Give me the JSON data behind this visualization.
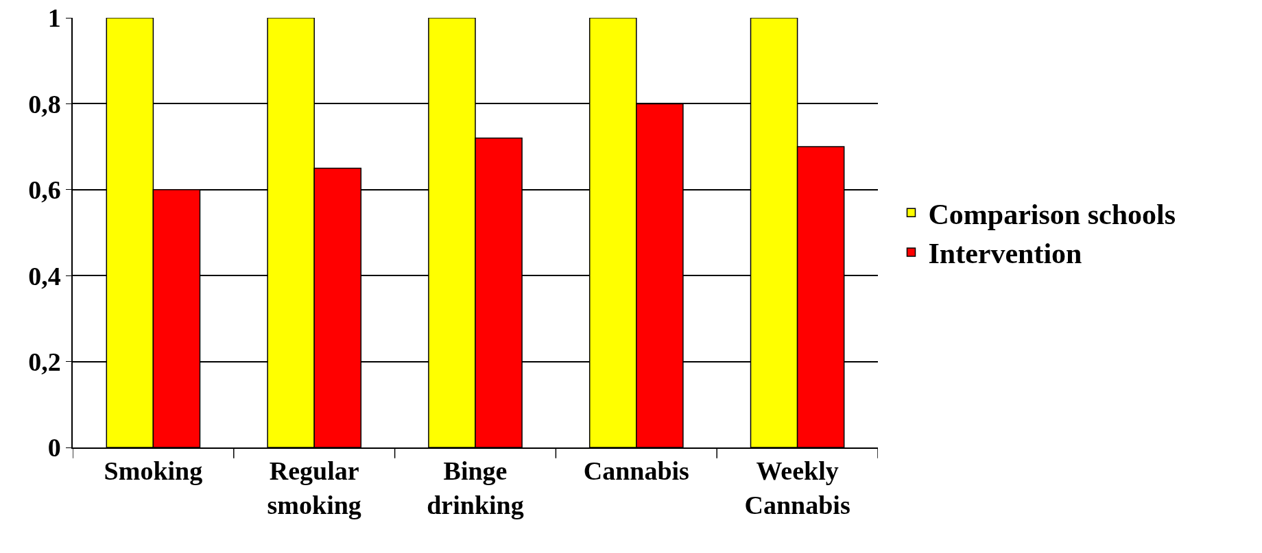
{
  "chart_data": {
    "type": "bar",
    "categories": [
      "Smoking",
      "Regular smoking",
      "Binge drinking",
      "Cannabis",
      "Weekly Cannabis"
    ],
    "series": [
      {
        "name": "Comparison schools",
        "color": "#ffff00",
        "values": [
          1,
          1,
          1,
          1,
          1
        ]
      },
      {
        "name": "Intervention",
        "color": "#ff0000",
        "values": [
          0.6,
          0.65,
          0.72,
          0.8,
          0.7
        ]
      }
    ],
    "ylim": [
      0,
      1
    ],
    "yticks": [
      0,
      {
        "value": 0.2,
        "label": "0,2"
      },
      {
        "value": 0.4,
        "label": "0,4"
      },
      {
        "value": 0.6,
        "label": "0,6"
      },
      {
        "value": 0.8,
        "label": "0,8"
      },
      1
    ],
    "grid": "y",
    "legend": "right"
  }
}
